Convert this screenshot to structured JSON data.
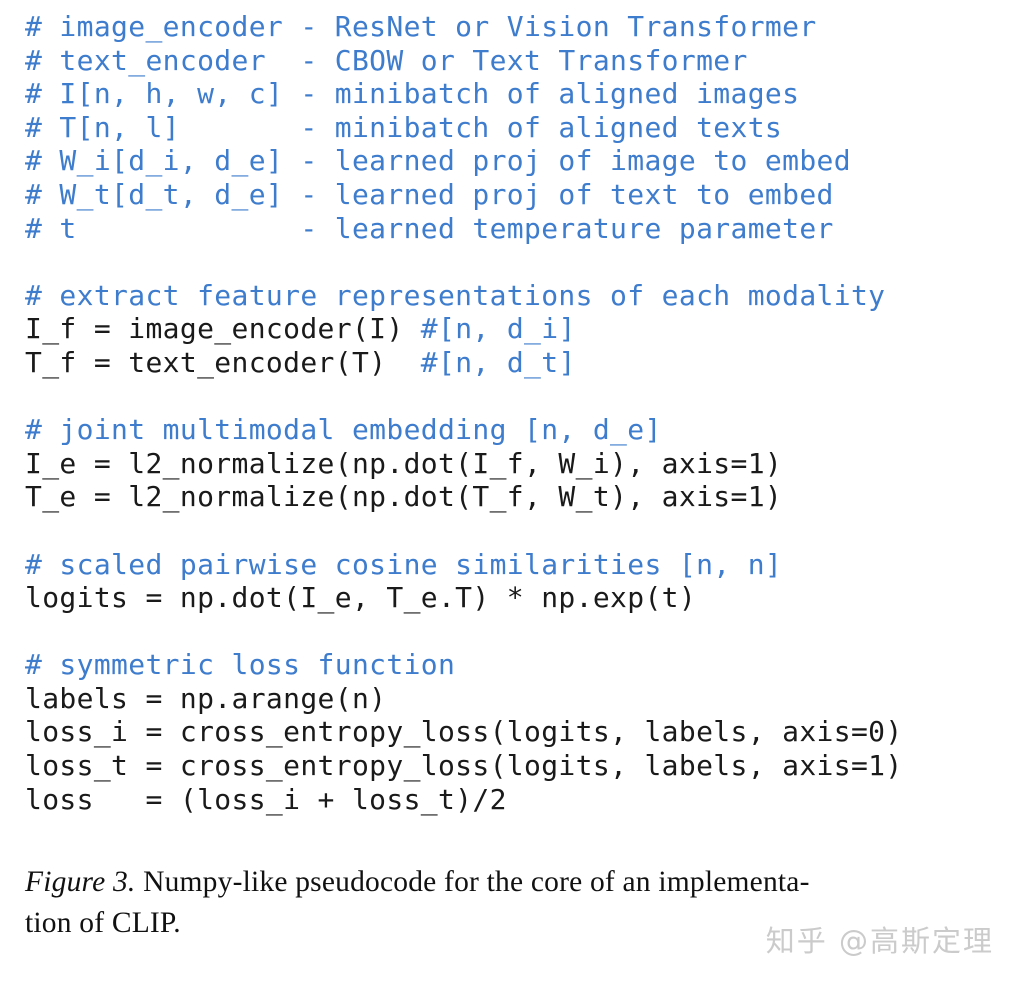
{
  "colors": {
    "comment_blue": "#3e7ccd",
    "code_black": "#1a1a1a",
    "caption_black": "#111111",
    "watermark_gray": "#cbcbcb",
    "background": "#ffffff"
  },
  "code": {
    "lines": [
      [
        {
          "t": "# image_encoder - ResNet or Vision Transformer",
          "c": "comment"
        }
      ],
      [
        {
          "t": "# text_encoder  - CBOW or Text Transformer",
          "c": "comment"
        }
      ],
      [
        {
          "t": "# I[n, h, w, c] - minibatch of aligned images",
          "c": "comment"
        }
      ],
      [
        {
          "t": "# T[n, l]       - minibatch of aligned texts",
          "c": "comment"
        }
      ],
      [
        {
          "t": "# W_i[d_i, d_e] - learned proj of image to embed",
          "c": "comment"
        }
      ],
      [
        {
          "t": "# W_t[d_t, d_e] - learned proj of text to embed",
          "c": "comment"
        }
      ],
      [
        {
          "t": "# t             - learned temperature parameter",
          "c": "comment"
        }
      ],
      [],
      [
        {
          "t": "# extract feature representations of each modality",
          "c": "comment"
        }
      ],
      [
        {
          "t": "I_f = image_encoder(I) ",
          "c": "code"
        },
        {
          "t": "#[n, d_i]",
          "c": "comment"
        }
      ],
      [
        {
          "t": "T_f = text_encoder(T)  ",
          "c": "code"
        },
        {
          "t": "#[n, d_t]",
          "c": "comment"
        }
      ],
      [],
      [
        {
          "t": "# joint multimodal embedding [n, d_e]",
          "c": "comment"
        }
      ],
      [
        {
          "t": "I_e = l2_normalize(np.dot(I_f, W_i), axis=1)",
          "c": "code"
        }
      ],
      [
        {
          "t": "T_e = l2_normalize(np.dot(T_f, W_t), axis=1)",
          "c": "code"
        }
      ],
      [],
      [
        {
          "t": "# scaled pairwise cosine similarities [n, n]",
          "c": "comment"
        }
      ],
      [
        {
          "t": "logits = np.dot(I_e, T_e.T) * np.exp(t)",
          "c": "code"
        }
      ],
      [],
      [
        {
          "t": "# symmetric loss function",
          "c": "comment"
        }
      ],
      [
        {
          "t": "labels = np.arange(n)",
          "c": "code"
        }
      ],
      [
        {
          "t": "loss_i = cross_entropy_loss(logits, labels, axis=0)",
          "c": "code"
        }
      ],
      [
        {
          "t": "loss_t = cross_entropy_loss(logits, labels, axis=1)",
          "c": "code"
        }
      ],
      [
        {
          "t": "loss   = (loss_i + loss_t)/2",
          "c": "code"
        }
      ]
    ]
  },
  "caption": {
    "figure_label": "Figure 3.",
    "line1_text": " Numpy-like pseudocode for the core of an implementa-",
    "line2_text": "tion of CLIP."
  },
  "watermark": {
    "text": "知乎 @高斯定理"
  }
}
